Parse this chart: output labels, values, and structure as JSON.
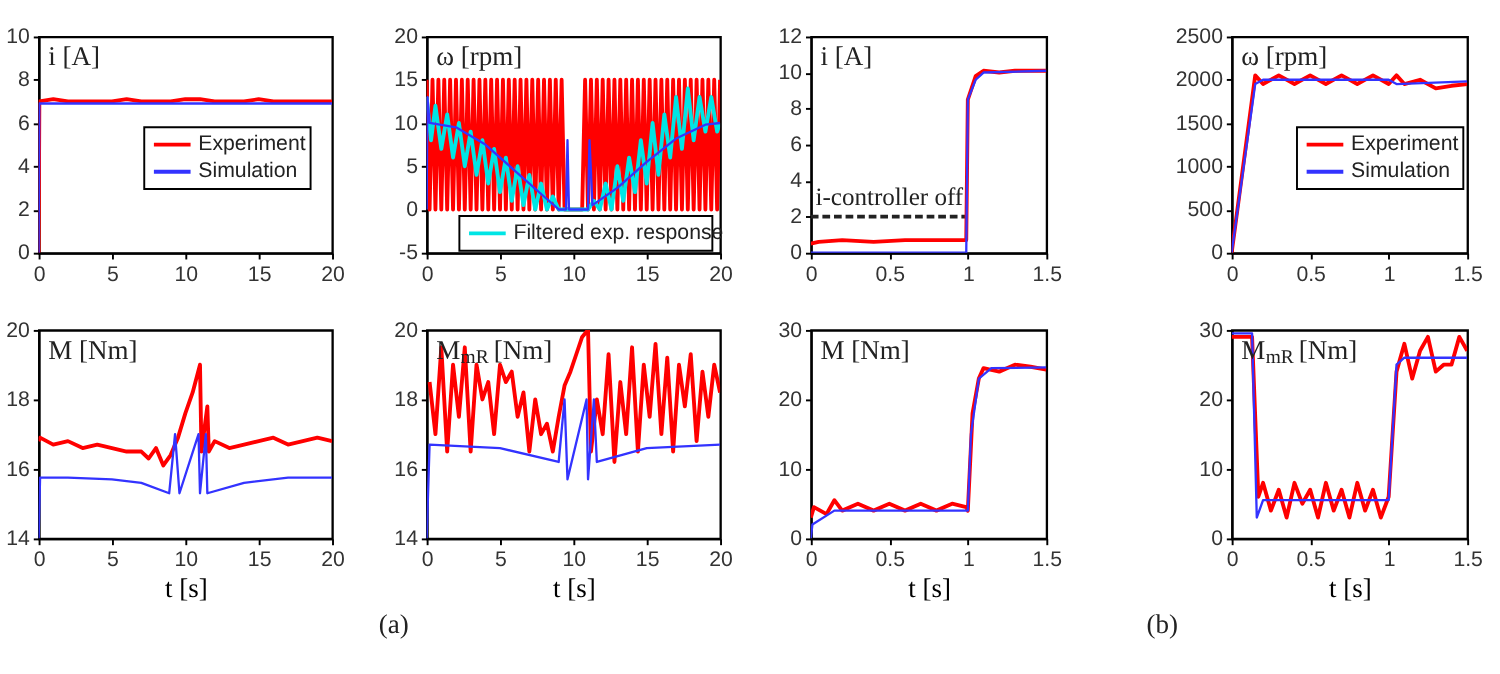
{
  "chart_data": [
    {
      "type": "line",
      "ylabel": "i [A]",
      "xlim": [
        0,
        20
      ],
      "ylim": [
        0,
        10
      ],
      "xticks": [
        0,
        5,
        10,
        15,
        20
      ],
      "yticks": [
        0,
        2,
        4,
        6,
        8,
        10
      ],
      "legend": "right",
      "series": [
        {
          "name": "Experiment",
          "color": "#ff0000",
          "x": [
            0,
            0.05,
            1,
            2,
            3,
            4,
            5,
            6,
            7,
            8,
            9,
            10,
            11,
            12,
            13,
            14,
            15,
            16,
            17,
            18,
            19,
            20
          ],
          "values": [
            0,
            7.0,
            7.1,
            7.0,
            7.0,
            7.0,
            7.0,
            7.1,
            7.0,
            7.0,
            7.0,
            7.1,
            7.1,
            7.0,
            7.0,
            7.0,
            7.1,
            7.0,
            7.0,
            7.0,
            7.0,
            7.0
          ]
        },
        {
          "name": "Simulation",
          "color": "#3333ff",
          "x": [
            0,
            0.05,
            20
          ],
          "values": [
            0,
            6.9,
            6.9
          ]
        }
      ]
    },
    {
      "type": "line",
      "ylabel": "ω [rpm]",
      "xlim": [
        0,
        20
      ],
      "ylim": [
        -5,
        20
      ],
      "xticks": [
        0,
        5,
        10,
        15,
        20
      ],
      "yticks": [
        -5,
        0,
        5,
        10,
        15,
        20
      ],
      "legend": "bottom right",
      "series": [
        {
          "color": "#ff0000",
          "x": [
            0,
            0.2,
            0.4,
            0.6,
            0.8,
            1,
            1.2,
            1.4,
            1.6,
            1.8,
            2,
            2.2,
            2.4,
            2.6,
            2.8,
            3,
            3.2,
            3.4,
            3.6,
            3.8,
            4,
            4.2,
            4.4,
            4.6,
            4.8,
            5,
            5.2,
            5.4,
            5.6,
            5.8,
            6,
            6.2,
            6.4,
            6.6,
            6.8,
            7,
            7.2,
            7.4,
            7.6,
            7.8,
            8,
            8.2,
            8.4,
            8.6,
            8.8,
            9,
            9.2,
            9.4,
            10.6,
            10.8,
            11.0,
            11.2,
            11.4,
            11.6,
            11.8,
            12,
            12.2,
            12.4,
            12.6,
            12.8,
            13,
            13.2,
            13.4,
            13.6,
            13.8,
            14,
            14.2,
            14.4,
            14.6,
            14.8,
            15,
            15.2,
            15.4,
            15.6,
            15.8,
            16,
            16.2,
            16.4,
            16.6,
            16.8,
            17,
            17.2,
            17.4,
            17.6,
            17.8,
            18,
            18.2,
            18.4,
            18.6,
            18.8,
            19,
            19.2,
            19.4,
            19.6,
            19.8,
            20
          ],
          "values": [
            15,
            0,
            15,
            0,
            15,
            0,
            15,
            0,
            15,
            0,
            15,
            0,
            15,
            0,
            15,
            0,
            15,
            0,
            15,
            0,
            15,
            0,
            15,
            0,
            15,
            0,
            15,
            0,
            15,
            0,
            15,
            0,
            15,
            0,
            15,
            0,
            15,
            0,
            15,
            0,
            15,
            0,
            15,
            0,
            15,
            0,
            15,
            0,
            0,
            15,
            0,
            15,
            0,
            15,
            0,
            15,
            0,
            15,
            0,
            15,
            0,
            15,
            0,
            15,
            0,
            15,
            0,
            15,
            0,
            15,
            0,
            15,
            0,
            15,
            0,
            15,
            0,
            15,
            0,
            15,
            0,
            15,
            0,
            15,
            0,
            15,
            0,
            15,
            0,
            15,
            0,
            15,
            0,
            15,
            0,
            15
          ]
        },
        {
          "name": "Filtered exp. response",
          "color": "#00e5e5",
          "x": [
            0,
            0.3,
            0.6,
            1,
            1.4,
            1.8,
            2.2,
            2.6,
            3,
            3.4,
            3.8,
            4.2,
            4.6,
            5,
            5.4,
            5.8,
            6.2,
            6.6,
            7,
            7.4,
            7.8,
            8.2,
            8.6,
            9,
            9.4,
            10,
            11,
            11.4,
            11.8,
            12.2,
            12.6,
            13,
            13.4,
            13.8,
            14.2,
            14.6,
            15,
            15.4,
            15.8,
            16.2,
            16.6,
            17,
            17.4,
            17.8,
            18.2,
            18.6,
            19,
            19.4,
            19.8,
            20
          ],
          "values": [
            13,
            8,
            12,
            7,
            11,
            6,
            10,
            5,
            9,
            4,
            8,
            3,
            7,
            2,
            6,
            1,
            5,
            0.5,
            4,
            0,
            3,
            0,
            1.5,
            0,
            0,
            0,
            0,
            1,
            0,
            3,
            0,
            5,
            1,
            6,
            2,
            8,
            3,
            10,
            4,
            11,
            6,
            13,
            7,
            14,
            8,
            13,
            9,
            13,
            9,
            10
          ]
        },
        {
          "color": "#3333ff",
          "x": [
            0,
            0.05,
            0.2,
            2,
            4,
            6,
            8,
            9,
            9.5,
            9.6,
            9.7,
            10.9,
            11.0,
            11.1,
            11.3,
            13,
            15,
            17,
            19,
            20
          ],
          "values": [
            0,
            13,
            10,
            9.5,
            7.5,
            4.5,
            1.5,
            0,
            0,
            8,
            0,
            0,
            0,
            8,
            0.5,
            2.5,
            5.5,
            8.2,
            9.8,
            10
          ]
        }
      ]
    },
    {
      "type": "line",
      "ylabel": "M [Nm]",
      "xlabel": "t [s]",
      "xlim": [
        0,
        20
      ],
      "ylim": [
        14,
        20
      ],
      "xticks": [
        0,
        5,
        10,
        15,
        20
      ],
      "yticks": [
        14,
        16,
        18,
        20
      ],
      "series": [
        {
          "color": "#ff0000",
          "x": [
            0,
            0.1,
            1,
            2,
            3,
            4,
            5,
            6,
            7,
            7.5,
            8,
            8.5,
            9,
            9.5,
            10,
            10.5,
            11,
            11.1,
            11.5,
            11.6,
            12,
            13,
            14,
            15,
            16,
            17,
            18,
            19,
            20
          ],
          "values": [
            16.8,
            16.9,
            16.7,
            16.8,
            16.6,
            16.7,
            16.6,
            16.5,
            16.5,
            16.3,
            16.6,
            16.1,
            16.4,
            16.9,
            17.6,
            18.2,
            19.0,
            16.5,
            17.8,
            16.5,
            16.8,
            16.6,
            16.7,
            16.8,
            16.9,
            16.7,
            16.8,
            16.9,
            16.8
          ]
        },
        {
          "color": "#3333ff",
          "x": [
            0,
            0.1,
            2,
            5,
            7,
            8.9,
            9.3,
            9.6,
            10.9,
            11.0,
            11.4,
            11.5,
            14,
            17,
            20
          ],
          "values": [
            14,
            15.75,
            15.75,
            15.7,
            15.6,
            15.3,
            17,
            15.3,
            17,
            15.3,
            17,
            15.3,
            15.6,
            15.75,
            15.75
          ]
        }
      ]
    },
    {
      "type": "line",
      "ylabel": "M$_{mR}$ [Nm]",
      "xlabel": "t [s]",
      "xlim": [
        0,
        20
      ],
      "ylim": [
        14,
        20
      ],
      "xticks": [
        0,
        5,
        10,
        15,
        20
      ],
      "yticks": [
        14,
        16,
        18,
        20
      ],
      "annotations": [
        "(a)"
      ],
      "series": [
        {
          "color": "#ff0000",
          "x": [
            0.2,
            0.6,
            1,
            1.4,
            1.8,
            2.2,
            2.6,
            3,
            3.4,
            3.8,
            4.2,
            4.6,
            5,
            5.4,
            5.8,
            6.2,
            6.6,
            7,
            7.4,
            7.8,
            8.2,
            8.6,
            9,
            9.4,
            9.8,
            10.2,
            10.6,
            11,
            11.2,
            11.6,
            12,
            12.4,
            12.8,
            13.2,
            13.6,
            14,
            14.4,
            14.8,
            15.2,
            15.6,
            16,
            16.4,
            16.8,
            17.2,
            17.6,
            18,
            18.4,
            18.8,
            19.2,
            19.6,
            20
          ],
          "values": [
            18.5,
            17,
            19.5,
            16.5,
            19,
            17.5,
            19.5,
            16.5,
            19,
            18,
            18.5,
            17,
            19,
            18.5,
            18.8,
            17.5,
            18.2,
            16.5,
            18,
            17,
            17.3,
            16.5,
            17.5,
            18.4,
            18.8,
            19.3,
            19.8,
            20,
            16.5,
            18,
            17,
            19.3,
            16.2,
            18.5,
            17,
            19.5,
            16.5,
            19,
            17.5,
            19.6,
            17,
            19.2,
            16.5,
            19,
            17.8,
            19.3,
            16.8,
            18.8,
            17.5,
            19,
            18.2
          ]
        },
        {
          "color": "#3333ff",
          "x": [
            0,
            0.2,
            5,
            9,
            9.4,
            9.6,
            10.9,
            11.0,
            11.4,
            11.6,
            15,
            20
          ],
          "values": [
            14,
            16.7,
            16.6,
            16.2,
            18,
            15.7,
            18,
            15.7,
            18,
            16.2,
            16.6,
            16.7
          ]
        }
      ]
    },
    {
      "type": "line",
      "ylabel": "i [A]",
      "xlim": [
        0,
        1.5
      ],
      "ylim": [
        0,
        12
      ],
      "xticks": [
        0,
        0.5,
        1,
        1.5
      ],
      "yticks": [
        0,
        2,
        4,
        6,
        8,
        10,
        12
      ],
      "annotations": [
        {
          "text": "i-controller off",
          "x": 0.5,
          "y": 2
        }
      ],
      "series": [
        {
          "color": "#222222",
          "line_style": "dashed",
          "x": [
            0,
            1
          ],
          "values": [
            2,
            2
          ]
        },
        {
          "color": "#ff0000",
          "x": [
            0,
            0.05,
            0.2,
            0.4,
            0.6,
            0.8,
            0.99,
            1.0,
            1.05,
            1.1,
            1.2,
            1.3,
            1.4,
            1.5
          ],
          "values": [
            0.5,
            0.6,
            0.7,
            0.6,
            0.7,
            0.7,
            0.7,
            8.5,
            9.8,
            10.1,
            10,
            10.1,
            10.1,
            10.1
          ]
        },
        {
          "color": "#3333ff",
          "x": [
            0,
            0.99,
            1.0,
            1.05,
            1.1,
            1.5
          ],
          "values": [
            0,
            0,
            8.5,
            9.6,
            10,
            10.1
          ]
        }
      ]
    },
    {
      "type": "line",
      "ylabel": "ω [rpm]",
      "xlim": [
        0,
        1.5
      ],
      "ylim": [
        0,
        2500
      ],
      "xticks": [
        0,
        0.5,
        1,
        1.5
      ],
      "yticks": [
        0,
        500,
        1000,
        1500,
        2000,
        2500
      ],
      "legend": "right",
      "series": [
        {
          "name": "Experiment",
          "color": "#ff0000",
          "x": [
            0,
            0.15,
            0.2,
            0.3,
            0.4,
            0.5,
            0.6,
            0.7,
            0.8,
            0.9,
            1.0,
            1.05,
            1.1,
            1.2,
            1.3,
            1.4,
            1.5
          ],
          "values": [
            0,
            2050,
            1950,
            2050,
            1950,
            2050,
            1950,
            2050,
            1950,
            2050,
            1950,
            2050,
            1950,
            2000,
            1900,
            1930,
            1950
          ]
        },
        {
          "name": "Simulation",
          "color": "#3333ff",
          "x": [
            0,
            0.15,
            0.2,
            1.0,
            1.05,
            1.5
          ],
          "values": [
            0,
            1950,
            2000,
            2000,
            1950,
            1980
          ]
        }
      ]
    },
    {
      "type": "line",
      "ylabel": "M [Nm]",
      "xlabel": "t [s]",
      "xlim": [
        0,
        1.5
      ],
      "ylim": [
        0,
        30
      ],
      "xticks": [
        0,
        0.5,
        1,
        1.5
      ],
      "yticks": [
        0,
        10,
        20,
        30
      ],
      "series": [
        {
          "color": "#ff0000",
          "x": [
            0,
            0.02,
            0.1,
            0.15,
            0.2,
            0.3,
            0.4,
            0.5,
            0.6,
            0.7,
            0.8,
            0.9,
            0.99,
            1.0,
            1.03,
            1.07,
            1.1,
            1.2,
            1.3,
            1.4,
            1.5
          ],
          "values": [
            3,
            4.5,
            3.5,
            5.5,
            4,
            5,
            4,
            5,
            4,
            5,
            4,
            5,
            4.5,
            4,
            18,
            23,
            24.5,
            24,
            25,
            24.7,
            24.3
          ]
        },
        {
          "color": "#3333ff",
          "x": [
            0,
            0.01,
            0.15,
            1.0,
            1.02,
            1.07,
            1.15,
            1.5
          ],
          "values": [
            0,
            2,
            4,
            4,
            15,
            23,
            24.5,
            24.6
          ]
        }
      ]
    },
    {
      "type": "line",
      "ylabel": "M$_{mR}$ [Nm]",
      "xlabel": "t [s]",
      "xlim": [
        0,
        1.5
      ],
      "ylim": [
        0,
        30
      ],
      "xticks": [
        0,
        0.5,
        1,
        1.5
      ],
      "yticks": [
        0,
        10,
        20,
        30
      ],
      "annotations": [
        "(b)"
      ],
      "series": [
        {
          "color": "#ff0000",
          "x": [
            0,
            0.13,
            0.17,
            0.2,
            0.25,
            0.3,
            0.35,
            0.4,
            0.45,
            0.5,
            0.55,
            0.6,
            0.65,
            0.7,
            0.75,
            0.8,
            0.85,
            0.9,
            0.95,
            1.0,
            1.05,
            1.1,
            1.15,
            1.2,
            1.25,
            1.3,
            1.35,
            1.4,
            1.45,
            1.5
          ],
          "values": [
            29,
            29,
            6,
            8,
            4,
            7,
            3,
            8,
            5,
            7,
            3,
            8,
            4,
            7,
            3,
            8,
            4,
            7,
            3,
            6,
            24,
            28,
            23,
            27,
            29,
            24,
            25,
            25,
            29,
            27
          ]
        },
        {
          "color": "#3333ff",
          "x": [
            0,
            0.13,
            0.16,
            0.2,
            1.0,
            1.05,
            1.1,
            1.5
          ],
          "values": [
            29.5,
            29.5,
            3,
            5.5,
            5.5,
            25,
            26,
            26
          ]
        }
      ]
    }
  ]
}
